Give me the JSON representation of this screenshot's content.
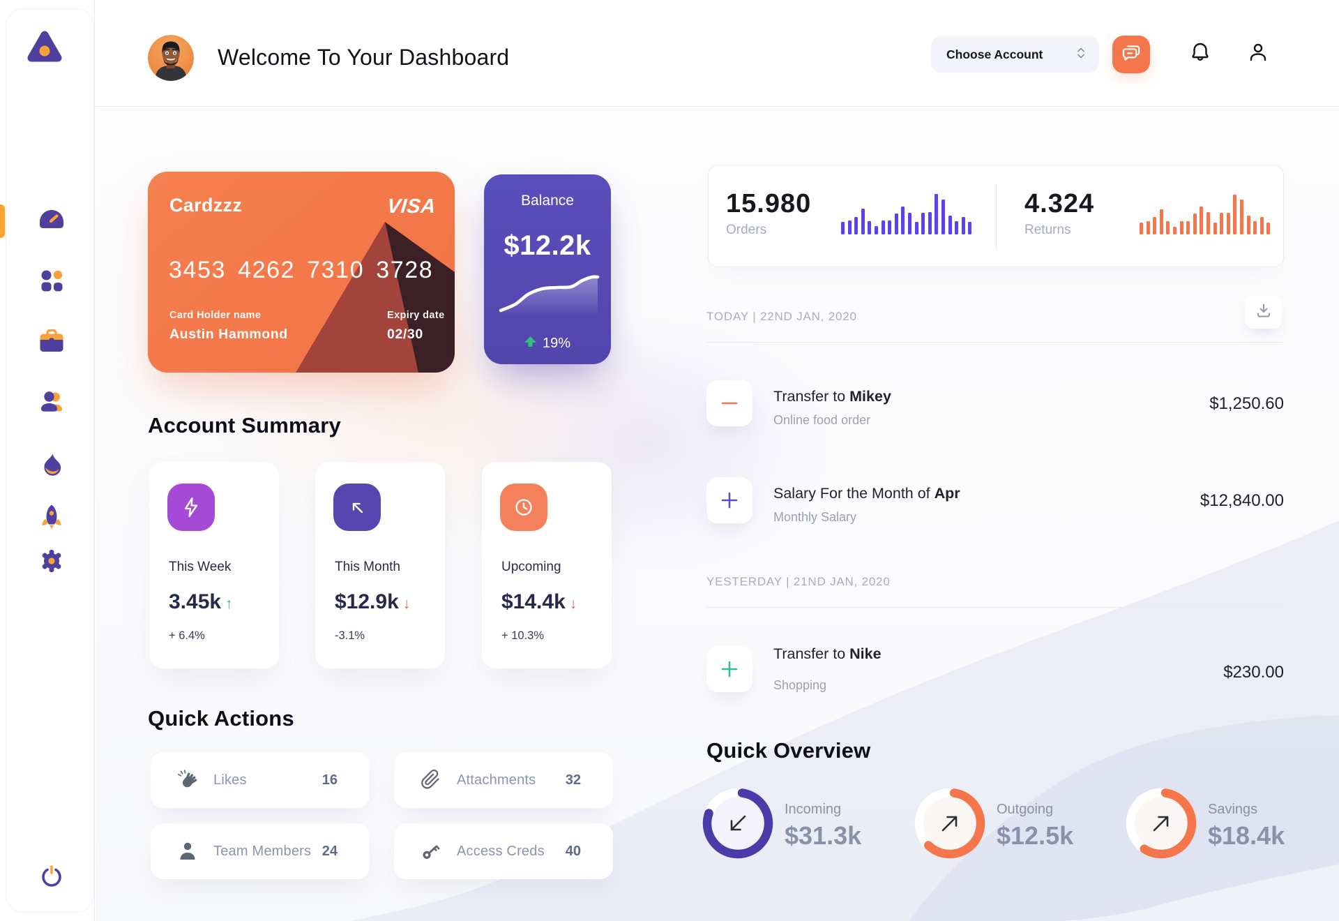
{
  "header": {
    "title": "Welcome To Your Dashboard",
    "account_dropdown": "Choose Account"
  },
  "sidebar": {
    "items": [
      {
        "icon": "gauge-icon",
        "active": true
      },
      {
        "icon": "grid-icon",
        "active": false
      },
      {
        "icon": "briefcase-icon",
        "active": false
      },
      {
        "icon": "users-icon",
        "active": false
      },
      {
        "icon": "flame-icon",
        "active": false
      },
      {
        "icon": "rocket-icon",
        "active": false
      },
      {
        "icon": "gear-icon",
        "active": false
      }
    ],
    "bottom_icon": "power-icon"
  },
  "bank_card": {
    "name": "Cardzzz",
    "brand": "VISA",
    "number": "3453 4262 7310 3728",
    "holder_label": "Card Holder name",
    "holder": "Austin Hammond",
    "expiry_label": "Expiry date",
    "expiry": "02/30"
  },
  "balance_card": {
    "label": "Balance",
    "value": "$12.2k",
    "trend": "19%",
    "trend_direction": "up"
  },
  "summary": {
    "heading": "Account Summary",
    "cards": [
      {
        "icon": "lightning-icon",
        "icon_bg": "#A44AD6",
        "label": "This Week",
        "value": "3.45k",
        "trend": "up",
        "change": "+ 6.4%"
      },
      {
        "icon": "arrow-up-left-icon",
        "icon_bg": "#5746AF",
        "label": "This Month",
        "value": "$12.9k",
        "trend": "down",
        "change": "-3.1%"
      },
      {
        "icon": "clock-icon",
        "icon_bg": "#F4815B",
        "label": "Upcoming",
        "value": "$14.4k",
        "trend": "down",
        "change": "+ 10.3%"
      }
    ]
  },
  "quick_actions": {
    "heading": "Quick Actions",
    "items": [
      {
        "icon": "clap-icon",
        "label": "Likes",
        "value": "16"
      },
      {
        "icon": "paperclip-icon",
        "label": "Attachments",
        "value": "32"
      },
      {
        "icon": "person-icon",
        "label": "Team Members",
        "value": "24"
      },
      {
        "icon": "key-icon",
        "label": "Access Creds",
        "value": "40"
      }
    ]
  },
  "stats": {
    "orders": {
      "value": "15.980",
      "label": "Orders"
    },
    "returns": {
      "value": "4.324",
      "label": "Returns"
    }
  },
  "chart_data": [
    {
      "type": "bar",
      "title": "Orders",
      "value_label": "15.980",
      "color": "#5B42F0",
      "values": [
        18,
        20,
        25,
        37,
        19,
        12,
        20,
        20,
        30,
        40,
        31,
        18,
        31,
        32,
        58,
        50,
        27,
        19,
        25,
        18
      ],
      "ymax": 60
    },
    {
      "type": "bar",
      "title": "Returns",
      "value_label": "4.324",
      "color": "#F4764A",
      "values": [
        17,
        19,
        25,
        36,
        19,
        11,
        19,
        19,
        30,
        40,
        32,
        17,
        31,
        31,
        57,
        50,
        27,
        19,
        25,
        17
      ],
      "ymax": 60
    },
    {
      "type": "line",
      "title": "Balance",
      "value": "$12.2k",
      "change": "+19%",
      "color": "#ffffff",
      "points": [
        [
          7,
          58
        ],
        [
          28,
          49
        ],
        [
          46,
          35
        ],
        [
          66,
          27
        ],
        [
          88,
          25
        ],
        [
          108,
          24
        ],
        [
          124,
          15
        ],
        [
          138,
          10
        ],
        [
          146,
          10
        ]
      ]
    },
    {
      "type": "donut",
      "items": [
        {
          "label": "Incoming",
          "value": "$31.3k",
          "percent": 78,
          "color": "#4A3CA8"
        },
        {
          "label": "Outgoing",
          "value": "$12.5k",
          "percent": 60,
          "color": "#F4764A"
        },
        {
          "label": "Savings",
          "value": "$18.4k",
          "percent": 57,
          "color": "#F4764A"
        }
      ]
    }
  ],
  "transactions": {
    "groups": [
      {
        "date": "TODAY | 22ND JAN, 2020",
        "items": [
          {
            "sign": "minus",
            "sign_color": "#F4764A",
            "title_prefix": "Transfer to ",
            "title_bold": "Mikey",
            "subtitle": "Online food order",
            "amount": "$1,250.60"
          },
          {
            "sign": "plus",
            "sign_color": "#5B4FC0",
            "title_prefix": "Salary For the Month of ",
            "title_bold": "Apr",
            "subtitle": "Monthly Salary",
            "amount": "$12,840.00"
          }
        ]
      },
      {
        "date": "YESTERDAY | 21ND JAN, 2020",
        "items": [
          {
            "sign": "plus",
            "sign_color": "#2DBE9B",
            "title_prefix": "Transfer to ",
            "title_bold": "Nike",
            "subtitle": "Shopping",
            "amount": "$230.00"
          }
        ]
      }
    ]
  },
  "overview": {
    "heading": "Quick Overview",
    "items": [
      {
        "label": "Incoming",
        "value": "$31.3k",
        "arrow": "down-left",
        "percent": 78,
        "color": "#4A3CA8"
      },
      {
        "label": "Outgoing",
        "value": "$12.5k",
        "arrow": "up-right",
        "percent": 60,
        "color": "#F4764A"
      },
      {
        "label": "Savings",
        "value": "$18.4k",
        "arrow": "up-right",
        "percent": 57,
        "color": "#F4764A"
      }
    ]
  }
}
